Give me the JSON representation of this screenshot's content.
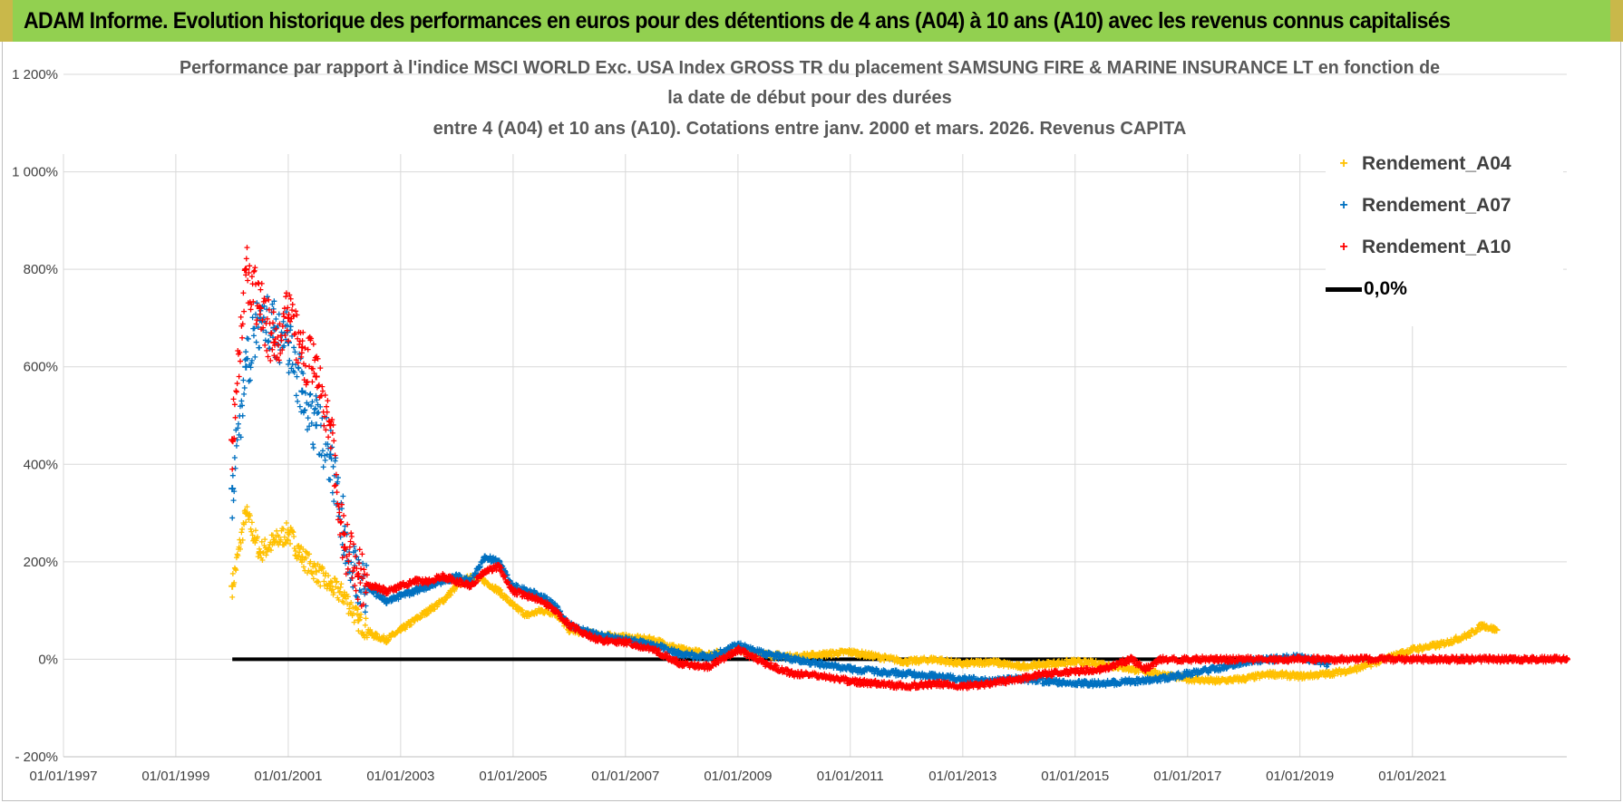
{
  "banner": {
    "title": "ADAM Informe. Evolution historique des performances en euros pour des détentions de 4 ans (A04) à 10 ans (A10) avec les revenus connus capitalisés"
  },
  "colors": {
    "banner_bg": "#92d050",
    "a04": "#ffc000",
    "a07": "#0070c0",
    "a10": "#ff0000",
    "zero_line": "#000000",
    "grid": "#d9d9d9",
    "axis_text": "#404040"
  },
  "chart_data": {
    "type": "scatter",
    "title": [
      "Performance par rapport à l'indice MSCI WORLD Exc. USA Index GROSS TR  du placement SAMSUNG FIRE & MARINE INSURANCE LT en fonction de",
      "la date de début pour des durées",
      "entre 4 (A04) et 10 ans (A10). Cotations entre janv. 2000 et mars. 2026. Revenus CAPITA"
    ],
    "xlabel": "",
    "ylabel": "",
    "x_range": [
      "1997-01-01",
      "2023-10-01"
    ],
    "ylim": [
      -200,
      1200
    ],
    "y_unit": "%",
    "grid": true,
    "legend_position": "top-right",
    "x_ticks": [
      "01/01/1997",
      "01/01/1999",
      "01/01/2001",
      "01/01/2003",
      "01/01/2005",
      "01/01/2007",
      "01/01/2009",
      "01/01/2011",
      "01/01/2013",
      "01/01/2015",
      "01/01/2017",
      "01/01/2019",
      "01/01/2021"
    ],
    "y_ticks": [
      "- 200%",
      "0%",
      "200%",
      "400%",
      "600%",
      "800%",
      "1 000%",
      "1 200%"
    ],
    "y_tick_values": [
      -200,
      0,
      200,
      400,
      600,
      800,
      1000,
      1200
    ],
    "series": [
      {
        "name": "Rendement_A04",
        "marker": "plus",
        "x": [
          "2000-01-03",
          "2000-04-01",
          "2000-07-01",
          "2000-10-01",
          "2001-01-01",
          "2001-04-01",
          "2001-07-01",
          "2001-10-01",
          "2002-01-01",
          "2002-04-01",
          "2002-07-01",
          "2002-10-01",
          "2003-01-01",
          "2003-04-01",
          "2003-07-01",
          "2003-10-01",
          "2004-01-01",
          "2004-04-01",
          "2004-07-01",
          "2004-10-01",
          "2005-01-01",
          "2005-04-01",
          "2005-07-01",
          "2005-10-01",
          "2006-01-01",
          "2006-07-01",
          "2007-01-01",
          "2007-07-01",
          "2008-01-01",
          "2008-07-01",
          "2009-01-01",
          "2009-07-01",
          "2010-01-01",
          "2010-07-01",
          "2011-01-01",
          "2011-07-01",
          "2012-01-01",
          "2012-07-01",
          "2013-01-01",
          "2013-07-01",
          "2014-01-01",
          "2014-07-01",
          "2015-01-01",
          "2015-07-01",
          "2016-01-01",
          "2016-07-01",
          "2017-01-01",
          "2017-07-01",
          "2018-01-01",
          "2018-07-01",
          "2019-01-01",
          "2019-07-01",
          "2020-01-01",
          "2020-07-01",
          "2021-01-01",
          "2021-07-01",
          "2022-01-01",
          "2022-04-01",
          "2022-07-01"
        ],
        "y": [
          150,
          300,
          220,
          240,
          260,
          210,
          180,
          150,
          130,
          80,
          50,
          40,
          60,
          80,
          100,
          120,
          150,
          170,
          160,
          140,
          110,
          90,
          100,
          95,
          60,
          50,
          45,
          40,
          20,
          10,
          20,
          10,
          5,
          10,
          15,
          5,
          -5,
          0,
          -10,
          -5,
          -15,
          -10,
          -5,
          -10,
          -20,
          -30,
          -40,
          -45,
          -40,
          -30,
          -35,
          -30,
          -20,
          0,
          20,
          30,
          50,
          70,
          60
        ]
      },
      {
        "name": "Rendement_A07",
        "marker": "plus",
        "x": [
          "2000-01-03",
          "2000-04-01",
          "2000-07-01",
          "2000-10-01",
          "2001-01-01",
          "2001-04-01",
          "2001-07-01",
          "2001-10-01",
          "2002-01-01",
          "2002-04-01",
          "2002-07-01",
          "2002-10-01",
          "2003-01-01",
          "2003-04-01",
          "2003-07-01",
          "2003-10-01",
          "2004-01-01",
          "2004-04-01",
          "2004-07-01",
          "2004-10-01",
          "2005-01-01",
          "2005-04-01",
          "2005-07-01",
          "2005-10-01",
          "2006-01-01",
          "2006-07-01",
          "2007-01-01",
          "2007-07-01",
          "2008-01-01",
          "2008-07-01",
          "2009-01-01",
          "2009-07-01",
          "2010-01-01",
          "2010-07-01",
          "2011-01-01",
          "2011-07-01",
          "2012-01-01",
          "2012-07-01",
          "2013-01-01",
          "2013-07-01",
          "2014-01-01",
          "2014-07-01",
          "2015-01-01",
          "2015-07-01",
          "2016-01-01",
          "2016-07-01",
          "2017-01-01",
          "2017-07-01",
          "2018-01-01",
          "2018-07-01",
          "2019-01-01",
          "2019-07-01"
        ],
        "y": [
          350,
          600,
          700,
          680,
          650,
          550,
          480,
          420,
          260,
          170,
          140,
          120,
          130,
          140,
          150,
          160,
          170,
          160,
          210,
          200,
          150,
          140,
          130,
          110,
          70,
          50,
          40,
          30,
          10,
          5,
          30,
          10,
          0,
          -10,
          -20,
          -25,
          -30,
          -35,
          -40,
          -45,
          -40,
          -45,
          -50,
          -50,
          -45,
          -40,
          -30,
          -20,
          -5,
          0,
          5,
          -10
        ]
      },
      {
        "name": "Rendement_A10",
        "marker": "plus",
        "x": [
          "2000-01-03",
          "2000-04-01",
          "2000-07-01",
          "2000-10-01",
          "2001-01-01",
          "2001-04-01",
          "2001-07-01",
          "2001-10-01",
          "2002-01-01",
          "2002-04-01",
          "2002-07-01",
          "2002-10-01",
          "2003-01-01",
          "2003-04-01",
          "2003-07-01",
          "2003-10-01",
          "2004-01-01",
          "2004-04-01",
          "2004-07-01",
          "2004-10-01",
          "2005-01-01",
          "2005-04-01",
          "2005-07-01",
          "2005-10-01",
          "2006-01-01",
          "2006-07-01",
          "2007-01-01",
          "2007-07-01",
          "2008-01-01",
          "2008-07-01",
          "2009-01-01",
          "2009-07-01",
          "2010-01-01",
          "2010-07-01",
          "2011-01-01",
          "2011-07-01",
          "2012-01-01",
          "2012-07-01",
          "2013-01-01",
          "2013-07-01",
          "2014-01-01",
          "2014-07-01",
          "2015-01-01",
          "2015-07-01",
          "2016-01-01",
          "2016-04-01",
          "2016-07-01",
          "2017-01-01",
          "2017-07-01",
          "2018-01-01",
          "2018-07-01",
          "2019-01-01",
          "2019-07-01",
          "2020-01-01",
          "2020-07-01",
          "2021-01-01",
          "2021-07-01",
          "2022-01-01",
          "2022-07-01",
          "2023-01-01",
          "2023-10-01"
        ],
        "y": [
          450,
          800,
          720,
          650,
          700,
          640,
          580,
          480,
          230,
          170,
          150,
          140,
          150,
          160,
          160,
          170,
          160,
          150,
          180,
          190,
          140,
          130,
          120,
          100,
          70,
          40,
          35,
          20,
          -10,
          -15,
          20,
          -10,
          -30,
          -35,
          -45,
          -50,
          -55,
          -50,
          -55,
          -50,
          -40,
          -30,
          -25,
          -20,
          0,
          -20,
          0,
          0,
          0,
          0,
          0,
          0,
          0,
          0,
          0,
          0,
          0,
          0,
          0,
          0,
          0
        ]
      },
      {
        "name": "0,0%",
        "marker": "line",
        "x": [
          "2000-01-03",
          "2023-10-01"
        ],
        "y": [
          0,
          0
        ]
      }
    ]
  }
}
